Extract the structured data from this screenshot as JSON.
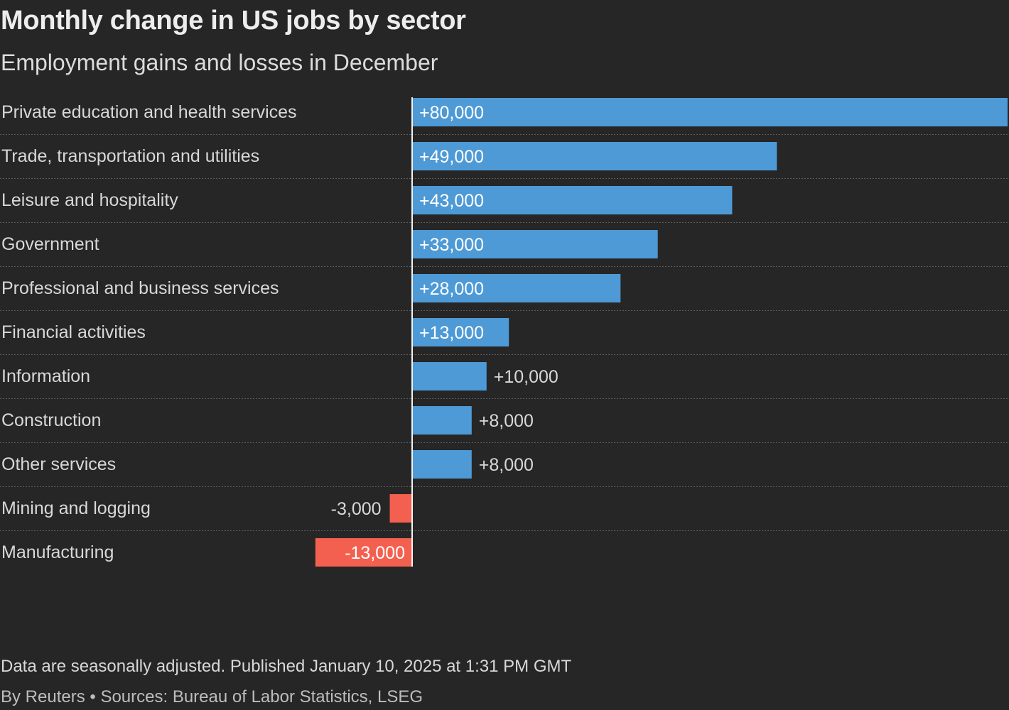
{
  "header": {
    "title": "Monthly change in US jobs by sector",
    "subtitle": "Employment gains and losses in December"
  },
  "footer": {
    "note": "Data are seasonally adjusted. Published January 10, 2025 at 1:31 PM GMT",
    "source": "By Reuters • Sources: Bureau of Labor Statistics, LSEG"
  },
  "colors": {
    "positive": "#4e9ad6",
    "negative": "#f4604f",
    "background": "#262626"
  },
  "chart_data": {
    "type": "bar",
    "orientation": "horizontal",
    "title": "Monthly change in US jobs by sector",
    "subtitle": "Employment gains and losses in December",
    "categories": [
      "Private education and health services",
      "Trade, transportation and utilities",
      "Leisure and hospitality",
      "Government",
      "Professional and business services",
      "Financial activities",
      "Information",
      "Construction",
      "Other services",
      "Mining and logging",
      "Manufacturing"
    ],
    "values": [
      80000,
      49000,
      43000,
      33000,
      28000,
      13000,
      10000,
      8000,
      8000,
      -3000,
      -13000
    ],
    "value_labels": [
      "+80,000",
      "+49,000",
      "+43,000",
      "+33,000",
      "+28,000",
      "+13,000",
      "+10,000",
      "+8,000",
      "+8,000",
      "-3,000",
      "-13,000"
    ],
    "xlim": [
      -13000,
      80000
    ],
    "xlabel": "",
    "ylabel": "",
    "grid": false,
    "legend": "none"
  }
}
